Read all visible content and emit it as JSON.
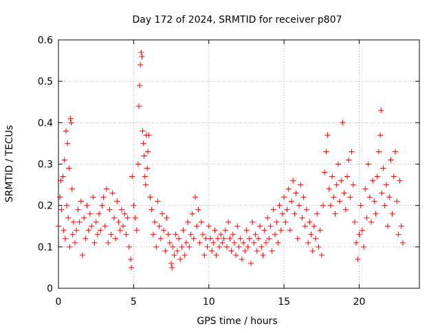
{
  "chart_data": {
    "type": "scatter",
    "title": "Day 172 of 2024, SRMTID for receiver p807",
    "xlabel": "GPS time / hours",
    "ylabel": "SRMTID / TECUs",
    "xlim": [
      0,
      24
    ],
    "ylim": [
      0,
      0.6
    ],
    "grid": true,
    "marker": "+",
    "color": "#ff0000",
    "xticks": [
      0,
      5,
      10,
      15,
      20
    ],
    "yticks": [
      0,
      0.1,
      0.2,
      0.3,
      0.4,
      0.5,
      0.6
    ],
    "xtick_labels": [
      "0",
      "5",
      "10",
      "15",
      "20"
    ],
    "ytick_labels": [
      "0",
      "0.1",
      "0.2",
      "0.3",
      "0.4",
      "0.5",
      "0.6"
    ],
    "series": [
      {
        "name": "SRMTID",
        "points": [
          [
            0.0,
            0.15
          ],
          [
            0.1,
            0.22
          ],
          [
            0.15,
            0.26
          ],
          [
            0.2,
            0.19
          ],
          [
            0.3,
            0.27
          ],
          [
            0.35,
            0.14
          ],
          [
            0.4,
            0.31
          ],
          [
            0.45,
            0.12
          ],
          [
            0.5,
            0.38
          ],
          [
            0.55,
            0.2
          ],
          [
            0.6,
            0.35
          ],
          [
            0.65,
            0.17
          ],
          [
            0.7,
            0.29
          ],
          [
            0.75,
            0.1
          ],
          [
            0.8,
            0.41
          ],
          [
            0.85,
            0.4
          ],
          [
            0.9,
            0.24
          ],
          [
            0.95,
            0.13
          ],
          [
            1.0,
            0.16
          ],
          [
            1.1,
            0.11
          ],
          [
            1.2,
            0.14
          ],
          [
            1.3,
            0.19
          ],
          [
            1.4,
            0.16
          ],
          [
            1.5,
            0.21
          ],
          [
            1.6,
            0.08
          ],
          [
            1.7,
            0.17
          ],
          [
            1.8,
            0.12
          ],
          [
            1.9,
            0.2
          ],
          [
            2.0,
            0.14
          ],
          [
            2.1,
            0.18
          ],
          [
            2.2,
            0.15
          ],
          [
            2.3,
            0.22
          ],
          [
            2.4,
            0.11
          ],
          [
            2.5,
            0.16
          ],
          [
            2.6,
            0.13
          ],
          [
            2.7,
            0.18
          ],
          [
            2.8,
            0.14
          ],
          [
            2.9,
            0.2
          ],
          [
            3.0,
            0.22
          ],
          [
            3.1,
            0.15
          ],
          [
            3.2,
            0.24
          ],
          [
            3.3,
            0.11
          ],
          [
            3.4,
            0.19
          ],
          [
            3.5,
            0.13
          ],
          [
            3.6,
            0.23
          ],
          [
            3.7,
            0.17
          ],
          [
            3.8,
            0.12
          ],
          [
            3.9,
            0.21
          ],
          [
            4.0,
            0.16
          ],
          [
            4.1,
            0.14
          ],
          [
            4.2,
            0.19
          ],
          [
            4.3,
            0.15
          ],
          [
            4.4,
            0.18
          ],
          [
            4.5,
            0.13
          ],
          [
            4.6,
            0.17
          ],
          [
            4.7,
            0.1
          ],
          [
            4.8,
            0.07
          ],
          [
            4.85,
            0.05
          ],
          [
            4.9,
            0.27
          ],
          [
            5.0,
            0.2
          ],
          [
            5.1,
            0.17
          ],
          [
            5.2,
            0.14
          ],
          [
            5.3,
            0.3
          ],
          [
            5.35,
            0.44
          ],
          [
            5.4,
            0.49
          ],
          [
            5.45,
            0.54
          ],
          [
            5.5,
            0.57
          ],
          [
            5.55,
            0.56
          ],
          [
            5.6,
            0.38
          ],
          [
            5.65,
            0.35
          ],
          [
            5.7,
            0.32
          ],
          [
            5.75,
            0.27
          ],
          [
            5.8,
            0.25
          ],
          [
            5.85,
            0.37
          ],
          [
            5.9,
            0.29
          ],
          [
            5.95,
            0.33
          ],
          [
            6.0,
            0.37
          ],
          [
            6.1,
            0.22
          ],
          [
            6.2,
            0.19
          ],
          [
            6.3,
            0.13
          ],
          [
            6.4,
            0.16
          ],
          [
            6.5,
            0.1
          ],
          [
            6.6,
            0.21
          ],
          [
            6.7,
            0.15
          ],
          [
            6.8,
            0.12
          ],
          [
            6.9,
            0.18
          ],
          [
            7.0,
            0.14
          ],
          [
            7.1,
            0.09
          ],
          [
            7.2,
            0.17
          ],
          [
            7.3,
            0.13
          ],
          [
            7.4,
            0.11
          ],
          [
            7.5,
            0.06
          ],
          [
            7.55,
            0.05
          ],
          [
            7.6,
            0.1
          ],
          [
            7.7,
            0.08
          ],
          [
            7.8,
            0.13
          ],
          [
            7.9,
            0.09
          ],
          [
            8.0,
            0.12
          ],
          [
            8.1,
            0.07
          ],
          [
            8.2,
            0.1
          ],
          [
            8.3,
            0.14
          ],
          [
            8.4,
            0.08
          ],
          [
            8.5,
            0.11
          ],
          [
            8.6,
            0.16
          ],
          [
            8.7,
            0.1
          ],
          [
            8.8,
            0.13
          ],
          [
            8.9,
            0.18
          ],
          [
            9.0,
            0.12
          ],
          [
            9.1,
            0.22
          ],
          [
            9.2,
            0.15
          ],
          [
            9.3,
            0.19
          ],
          [
            9.4,
            0.11
          ],
          [
            9.5,
            0.16
          ],
          [
            9.6,
            0.13
          ],
          [
            9.7,
            0.08
          ],
          [
            9.8,
            0.12
          ],
          [
            9.9,
            0.1
          ],
          [
            10.0,
            0.15
          ],
          [
            10.1,
            0.12
          ],
          [
            10.2,
            0.09
          ],
          [
            10.3,
            0.11
          ],
          [
            10.4,
            0.14
          ],
          [
            10.5,
            0.08
          ],
          [
            10.6,
            0.12
          ],
          [
            10.7,
            0.1
          ],
          [
            10.8,
            0.13
          ],
          [
            10.9,
            0.11
          ],
          [
            11.0,
            0.12
          ],
          [
            11.1,
            0.14
          ],
          [
            11.2,
            0.1
          ],
          [
            11.3,
            0.16
          ],
          [
            11.4,
            0.12
          ],
          [
            11.5,
            0.09
          ],
          [
            11.6,
            0.13
          ],
          [
            11.7,
            0.11
          ],
          [
            11.8,
            0.08
          ],
          [
            11.9,
            0.15
          ],
          [
            12.0,
            0.1
          ],
          [
            12.1,
            0.12
          ],
          [
            12.2,
            0.07
          ],
          [
            12.3,
            0.11
          ],
          [
            12.4,
            0.09
          ],
          [
            12.5,
            0.14
          ],
          [
            12.6,
            0.1
          ],
          [
            12.7,
            0.12
          ],
          [
            12.8,
            0.06
          ],
          [
            12.9,
            0.16
          ],
          [
            13.0,
            0.11
          ],
          [
            13.1,
            0.13
          ],
          [
            13.2,
            0.09
          ],
          [
            13.3,
            0.12
          ],
          [
            13.4,
            0.15
          ],
          [
            13.5,
            0.1
          ],
          [
            13.6,
            0.08
          ],
          [
            13.7,
            0.14
          ],
          [
            13.8,
            0.11
          ],
          [
            13.9,
            0.17
          ],
          [
            14.0,
            0.12
          ],
          [
            14.1,
            0.15
          ],
          [
            14.2,
            0.09
          ],
          [
            14.3,
            0.19
          ],
          [
            14.4,
            0.13
          ],
          [
            14.5,
            0.16
          ],
          [
            14.6,
            0.11
          ],
          [
            14.7,
            0.2
          ],
          [
            14.8,
            0.14
          ],
          [
            14.9,
            0.18
          ],
          [
            15.0,
            0.22
          ],
          [
            15.1,
            0.16
          ],
          [
            15.2,
            0.19
          ],
          [
            15.3,
            0.24
          ],
          [
            15.4,
            0.14
          ],
          [
            15.5,
            0.21
          ],
          [
            15.6,
            0.26
          ],
          [
            15.7,
            0.18
          ],
          [
            15.8,
            0.23
          ],
          [
            15.9,
            0.12
          ],
          [
            16.0,
            0.2
          ],
          [
            16.1,
            0.25
          ],
          [
            16.2,
            0.17
          ],
          [
            16.3,
            0.22
          ],
          [
            16.4,
            0.15
          ],
          [
            16.5,
            0.19
          ],
          [
            16.6,
            0.11
          ],
          [
            16.7,
            0.16
          ],
          [
            16.8,
            0.13
          ],
          [
            16.9,
            0.09
          ],
          [
            17.0,
            0.15
          ],
          [
            17.1,
            0.12
          ],
          [
            17.2,
            0.18
          ],
          [
            17.3,
            0.1
          ],
          [
            17.4,
            0.14
          ],
          [
            17.5,
            0.08
          ],
          [
            17.6,
            0.2
          ],
          [
            17.7,
            0.28
          ],
          [
            17.8,
            0.33
          ],
          [
            17.9,
            0.37
          ],
          [
            18.0,
            0.24
          ],
          [
            18.1,
            0.2
          ],
          [
            18.2,
            0.27
          ],
          [
            18.3,
            0.22
          ],
          [
            18.4,
            0.18
          ],
          [
            18.5,
            0.25
          ],
          [
            18.6,
            0.3
          ],
          [
            18.7,
            0.21
          ],
          [
            18.8,
            0.26
          ],
          [
            18.9,
            0.4
          ],
          [
            19.0,
            0.23
          ],
          [
            19.1,
            0.19
          ],
          [
            19.2,
            0.27
          ],
          [
            19.3,
            0.31
          ],
          [
            19.4,
            0.22
          ],
          [
            19.5,
            0.33
          ],
          [
            19.6,
            0.25
          ],
          [
            19.7,
            0.16
          ],
          [
            19.8,
            0.11
          ],
          [
            19.9,
            0.07
          ],
          [
            20.0,
            0.13
          ],
          [
            20.1,
            0.2
          ],
          [
            20.2,
            0.14
          ],
          [
            20.3,
            0.1
          ],
          [
            20.4,
            0.24
          ],
          [
            20.5,
            0.17
          ],
          [
            20.6,
            0.3
          ],
          [
            20.7,
            0.22
          ],
          [
            20.8,
            0.16
          ],
          [
            20.9,
            0.26
          ],
          [
            21.0,
            0.21
          ],
          [
            21.1,
            0.18
          ],
          [
            21.2,
            0.27
          ],
          [
            21.3,
            0.33
          ],
          [
            21.4,
            0.37
          ],
          [
            21.45,
            0.43
          ],
          [
            21.5,
            0.23
          ],
          [
            21.6,
            0.29
          ],
          [
            21.7,
            0.2
          ],
          [
            21.8,
            0.25
          ],
          [
            21.9,
            0.15
          ],
          [
            22.0,
            0.22
          ],
          [
            22.1,
            0.31
          ],
          [
            22.2,
            0.18
          ],
          [
            22.3,
            0.27
          ],
          [
            22.4,
            0.33
          ],
          [
            22.5,
            0.21
          ],
          [
            22.6,
            0.13
          ],
          [
            22.7,
            0.26
          ],
          [
            22.8,
            0.15
          ],
          [
            22.9,
            0.11
          ]
        ]
      }
    ]
  }
}
